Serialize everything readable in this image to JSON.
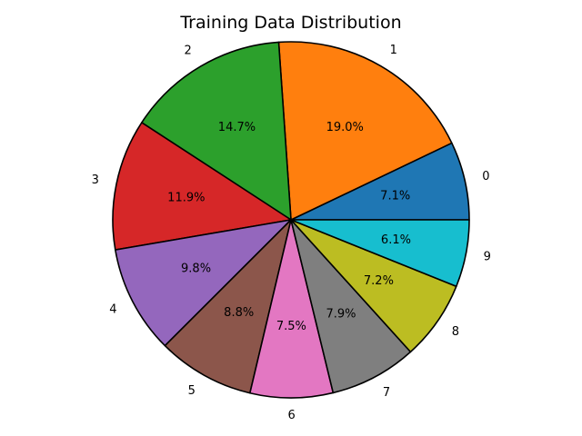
{
  "chart_data": {
    "type": "pie",
    "title": "Training Data Distribution",
    "start_angle_deg": 0,
    "direction": "counterclockwise",
    "categories": [
      "0",
      "1",
      "2",
      "3",
      "4",
      "5",
      "6",
      "7",
      "8",
      "9"
    ],
    "values": [
      7.1,
      19.0,
      14.7,
      11.9,
      9.8,
      8.8,
      7.5,
      7.9,
      7.2,
      6.1
    ],
    "value_labels": [
      "7.1%",
      "19.0%",
      "14.7%",
      "11.9%",
      "9.8%",
      "8.8%",
      "7.5%",
      "7.9%",
      "7.2%",
      "6.1%"
    ],
    "colors": [
      "#1f77b4",
      "#ff7f0e",
      "#2ca02c",
      "#d62728",
      "#9467bd",
      "#8c564b",
      "#e377c2",
      "#7f7f7f",
      "#bcbd22",
      "#17becf"
    ],
    "edge_color": "#000000"
  }
}
